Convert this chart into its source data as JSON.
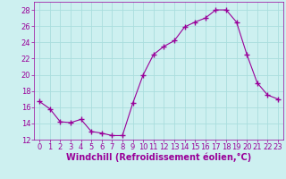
{
  "x": [
    0,
    1,
    2,
    3,
    4,
    5,
    6,
    7,
    8,
    9,
    10,
    11,
    12,
    13,
    14,
    15,
    16,
    17,
    18,
    19,
    20,
    21,
    22,
    23
  ],
  "y": [
    16.7,
    15.8,
    14.2,
    14.1,
    14.5,
    13.0,
    12.8,
    12.5,
    12.5,
    16.5,
    20.0,
    22.5,
    23.5,
    24.2,
    25.9,
    26.5,
    27.0,
    28.0,
    28.0,
    26.5,
    22.5,
    19.0,
    17.5,
    17.0
  ],
  "line_color": "#990099",
  "marker": "+",
  "marker_size": 4,
  "marker_linewidth": 1.0,
  "background_color": "#cdf0f0",
  "grid_color": "#aadddd",
  "xlabel": "Windchill (Refroidissement éolien,°C)",
  "xlabel_color": "#990099",
  "xlabel_fontsize": 7,
  "tick_color": "#990099",
  "tick_fontsize": 6,
  "ylim": [
    12,
    29
  ],
  "xlim": [
    -0.5,
    23.5
  ],
  "yticks": [
    12,
    14,
    16,
    18,
    20,
    22,
    24,
    26,
    28
  ],
  "xticks": [
    0,
    1,
    2,
    3,
    4,
    5,
    6,
    7,
    8,
    9,
    10,
    11,
    12,
    13,
    14,
    15,
    16,
    17,
    18,
    19,
    20,
    21,
    22,
    23
  ]
}
